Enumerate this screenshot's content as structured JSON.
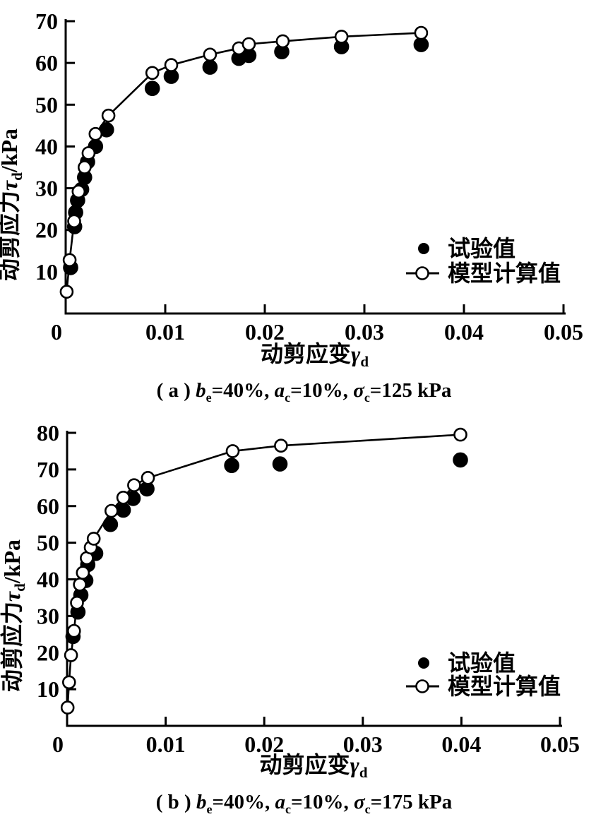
{
  "page": {
    "background": "#ffffff"
  },
  "colors": {
    "ink": "#000000",
    "open_marker_fill": "#ffffff"
  },
  "legend": {
    "experimental_label": "试验值",
    "model_label": "模型计算值",
    "position": "right-middle"
  },
  "chart_data": [
    {
      "type": "line",
      "panel": "a",
      "xlabel": {
        "text": "动剪应变",
        "symbol": "γ",
        "sub": "d"
      },
      "ylabel": {
        "text": "动剪应力",
        "symbol": "τ",
        "sub": "d",
        "unit": "/kPa"
      },
      "xlim": [
        0,
        0.05
      ],
      "ylim": [
        0,
        70
      ],
      "xticks": [
        0,
        0.01,
        0.02,
        0.03,
        0.04,
        0.05
      ],
      "xtick_labels": [
        "0",
        "0.01",
        "0.02",
        "0.03",
        "0.04",
        "0.05"
      ],
      "yticks": [
        10,
        20,
        30,
        40,
        50,
        60,
        70
      ],
      "grid": false,
      "legend_position": "right-middle",
      "series": [
        {
          "name": "试验值",
          "type": "scatter",
          "marker": "filled-circle",
          "x": [
            0.0005,
            0.0009,
            0.001,
            0.0012,
            0.0016,
            0.0019,
            0.0022,
            0.003,
            0.0041,
            0.0087,
            0.0106,
            0.0145,
            0.0174,
            0.0184,
            0.0217,
            0.0277,
            0.0357
          ],
          "y": [
            11.0,
            20.8,
            24.2,
            27.1,
            29.7,
            32.6,
            36.3,
            40.0,
            44.0,
            53.9,
            56.8,
            59.0,
            61.1,
            61.8,
            62.7,
            63.9,
            64.4
          ]
        },
        {
          "name": "模型计算值",
          "type": "line+scatter",
          "marker": "open-circle",
          "x": [
            0.0001,
            0.0004,
            0.00085,
            0.0013,
            0.0019,
            0.0023,
            0.003,
            0.0043,
            0.0087,
            0.0106,
            0.0145,
            0.0174,
            0.0184,
            0.0218,
            0.0277,
            0.0357
          ],
          "y": [
            5.2,
            12.8,
            22.1,
            29.2,
            35.0,
            38.4,
            43.0,
            47.4,
            57.6,
            59.5,
            62.0,
            63.5,
            64.5,
            65.2,
            66.3,
            67.2
          ]
        }
      ],
      "caption": [
        {
          "t": "( a ) "
        },
        {
          "t": "b",
          "style": "italic"
        },
        {
          "t": "e",
          "style": "sub"
        },
        {
          "t": "=40%, "
        },
        {
          "t": "a",
          "style": "italic"
        },
        {
          "t": "c",
          "style": "sub"
        },
        {
          "t": "=10%, "
        },
        {
          "t": "σ",
          "style": "italic"
        },
        {
          "t": "c",
          "style": "sub"
        },
        {
          "t": "=125 kPa"
        }
      ]
    },
    {
      "type": "line",
      "panel": "b",
      "xlabel": {
        "text": "动剪应变",
        "symbol": "γ",
        "sub": "d"
      },
      "ylabel": {
        "text": "动剪应力",
        "symbol": "τ",
        "sub": "d",
        "unit": "/kPa"
      },
      "xlim": [
        0,
        0.05
      ],
      "ylim": [
        0,
        80
      ],
      "xticks": [
        0,
        0.01,
        0.02,
        0.03,
        0.04,
        0.05
      ],
      "xtick_labels": [
        "0",
        "0.01",
        "0.02",
        "0.03",
        "0.04",
        "0.05"
      ],
      "yticks": [
        10,
        20,
        30,
        40,
        50,
        60,
        70,
        80
      ],
      "grid": false,
      "legend_position": "right-middle",
      "series": [
        {
          "name": "试验值",
          "type": "scatter",
          "marker": "filled-circle",
          "x": [
            0.0006,
            0.0011,
            0.0014,
            0.0019,
            0.0021,
            0.0029,
            0.0044,
            0.0057,
            0.0067,
            0.0081,
            0.0167,
            0.0216,
            0.0399
          ],
          "y": [
            24.4,
            31.1,
            35.7,
            39.7,
            44.0,
            47.1,
            55.0,
            58.9,
            62.1,
            64.7,
            71.1,
            71.5,
            72.6
          ]
        },
        {
          "name": "模型计算值",
          "type": "line+scatter",
          "marker": "open-circle",
          "x": [
            5e-05,
            0.0002,
            0.0004,
            0.0007,
            0.001,
            0.0013,
            0.0016,
            0.002,
            0.0024,
            0.0027,
            0.0045,
            0.0057,
            0.0068,
            0.0082,
            0.0168,
            0.0217,
            0.0399
          ],
          "y": [
            5.0,
            11.9,
            19.3,
            25.9,
            33.6,
            38.6,
            41.8,
            45.8,
            48.7,
            51.1,
            58.7,
            62.3,
            65.7,
            67.7,
            75.0,
            76.5,
            79.5
          ]
        }
      ],
      "caption": [
        {
          "t": "( b ) "
        },
        {
          "t": "b",
          "style": "italic"
        },
        {
          "t": "e",
          "style": "sub"
        },
        {
          "t": "=40%, "
        },
        {
          "t": "a",
          "style": "italic"
        },
        {
          "t": "c",
          "style": "sub"
        },
        {
          "t": "=10%, "
        },
        {
          "t": "σ",
          "style": "italic"
        },
        {
          "t": "c",
          "style": "sub"
        },
        {
          "t": "=175 kPa"
        }
      ]
    }
  ]
}
